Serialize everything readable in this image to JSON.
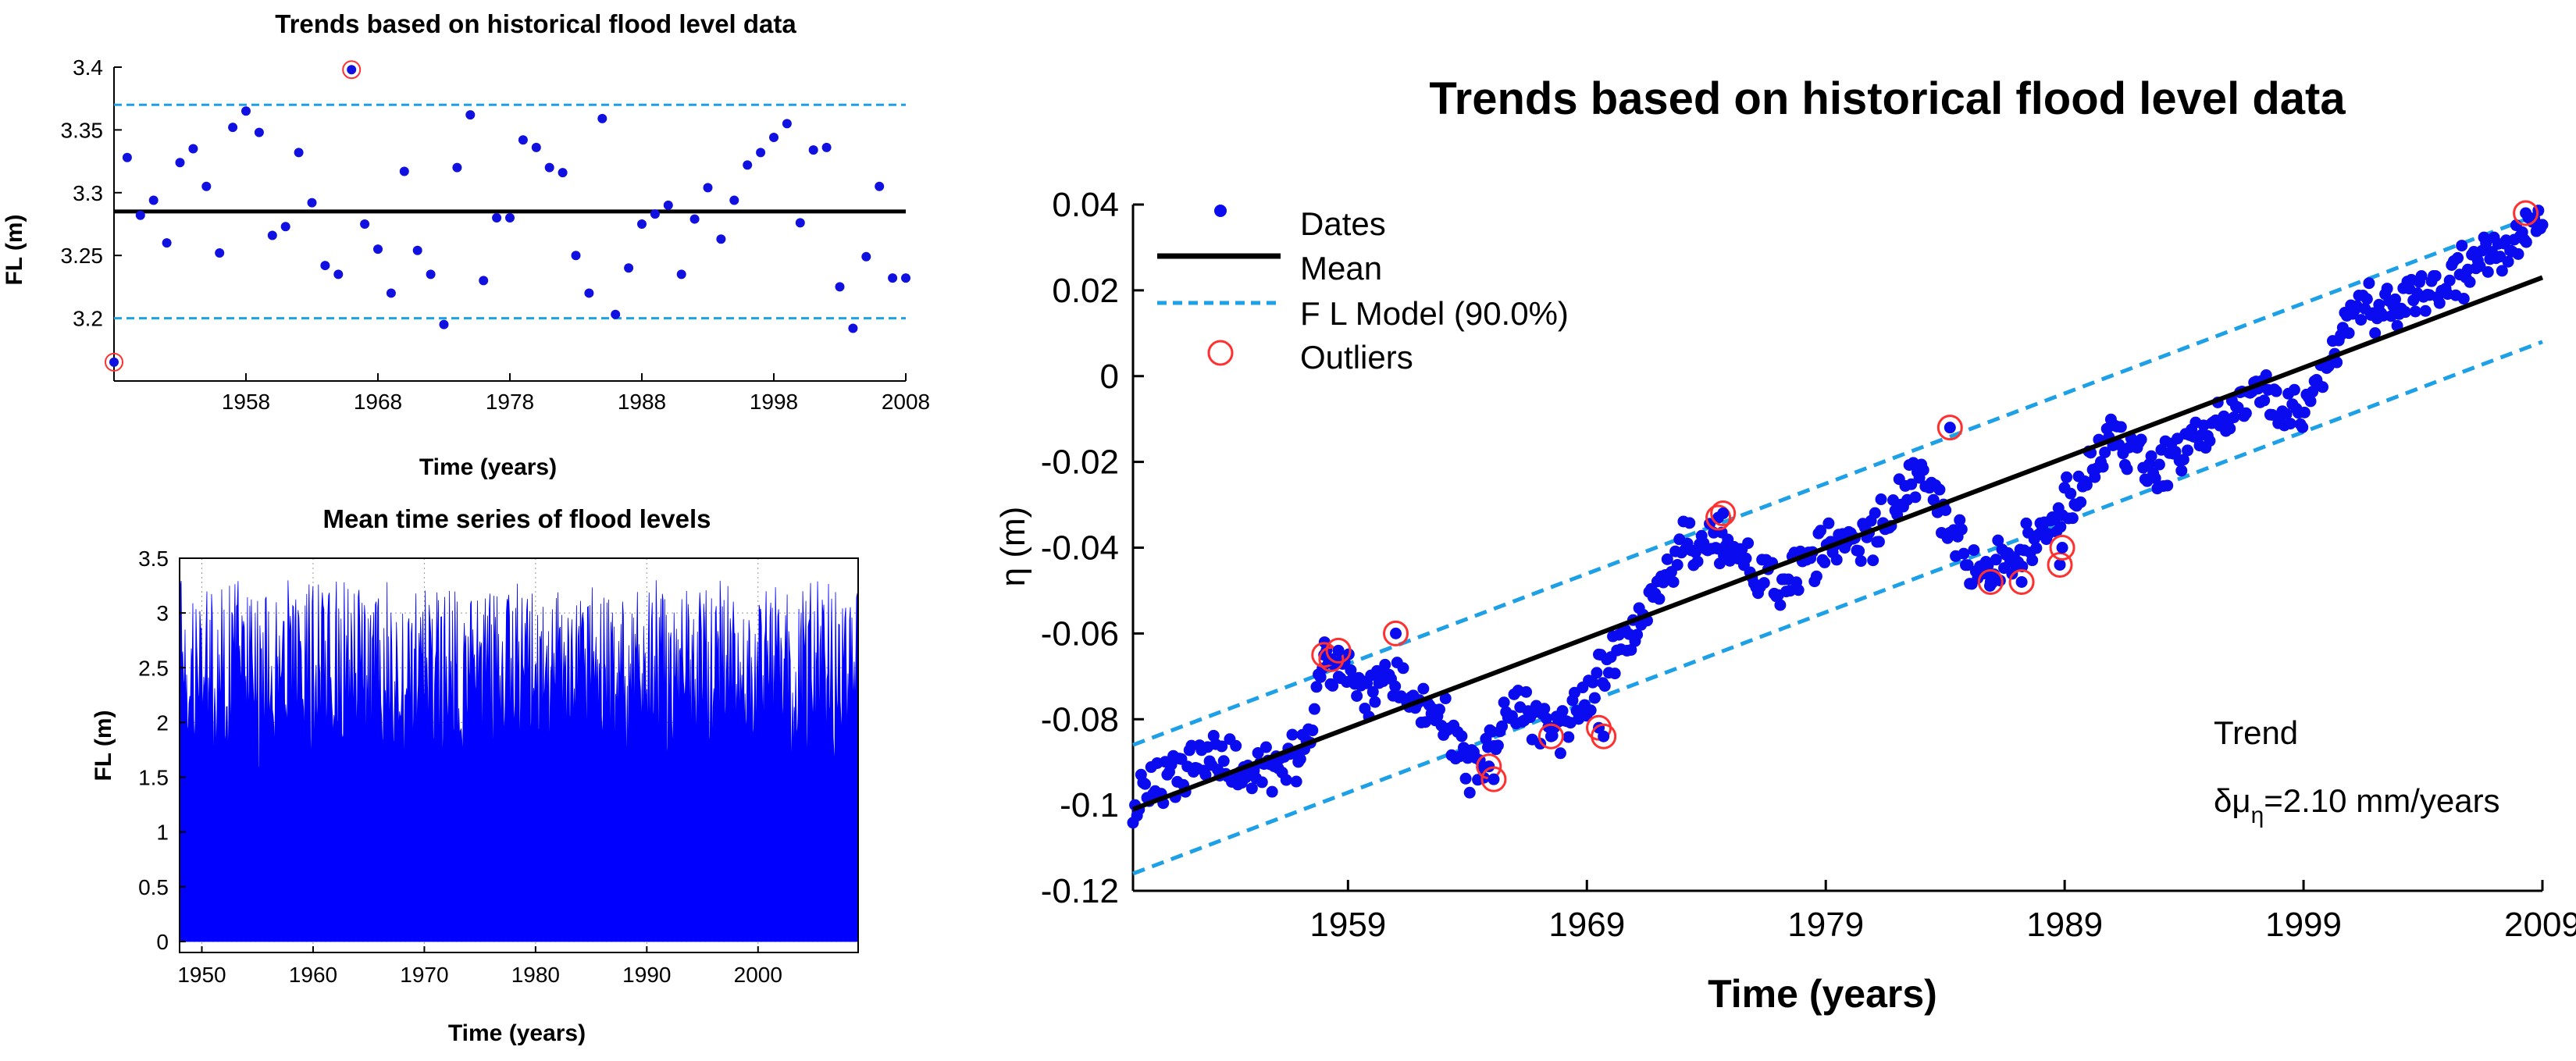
{
  "chart_data": [
    {
      "type": "scatter",
      "title": "Trends based on historical flood level data",
      "xlabel": "Time (years)",
      "ylabel": "FL (m)",
      "xlim": [
        1948,
        2008
      ],
      "ylim": [
        3.15,
        3.4
      ],
      "xticks": [
        "1958",
        "1968",
        "1978",
        "1988",
        "1998",
        "2008"
      ],
      "yticks": [
        "3.2",
        "3.25",
        "3.3",
        "3.35",
        "3.4"
      ],
      "mean": 3.285,
      "upper_bound": 3.37,
      "lower_bound": 3.2,
      "points": [
        {
          "x": 1948,
          "y": 3.165
        },
        {
          "x": 1949,
          "y": 3.328
        },
        {
          "x": 1950,
          "y": 3.282
        },
        {
          "x": 1951,
          "y": 3.294
        },
        {
          "x": 1952,
          "y": 3.26
        },
        {
          "x": 1953,
          "y": 3.324
        },
        {
          "x": 1954,
          "y": 3.335
        },
        {
          "x": 1955,
          "y": 3.305
        },
        {
          "x": 1956,
          "y": 3.252
        },
        {
          "x": 1957,
          "y": 3.352
        },
        {
          "x": 1958,
          "y": 3.365
        },
        {
          "x": 1959,
          "y": 3.348
        },
        {
          "x": 1960,
          "y": 3.266
        },
        {
          "x": 1961,
          "y": 3.273
        },
        {
          "x": 1962,
          "y": 3.332
        },
        {
          "x": 1963,
          "y": 3.292
        },
        {
          "x": 1964,
          "y": 3.242
        },
        {
          "x": 1965,
          "y": 3.235
        },
        {
          "x": 1966,
          "y": 3.398
        },
        {
          "x": 1967,
          "y": 3.275
        },
        {
          "x": 1968,
          "y": 3.255
        },
        {
          "x": 1969,
          "y": 3.22
        },
        {
          "x": 1970,
          "y": 3.317
        },
        {
          "x": 1971,
          "y": 3.254
        },
        {
          "x": 1972,
          "y": 3.235
        },
        {
          "x": 1973,
          "y": 3.195
        },
        {
          "x": 1974,
          "y": 3.32
        },
        {
          "x": 1975,
          "y": 3.362
        },
        {
          "x": 1976,
          "y": 3.23
        },
        {
          "x": 1977,
          "y": 3.28
        },
        {
          "x": 1978,
          "y": 3.28
        },
        {
          "x": 1979,
          "y": 3.342
        },
        {
          "x": 1980,
          "y": 3.336
        },
        {
          "x": 1981,
          "y": 3.32
        },
        {
          "x": 1982,
          "y": 3.316
        },
        {
          "x": 1983,
          "y": 3.25
        },
        {
          "x": 1984,
          "y": 3.22
        },
        {
          "x": 1985,
          "y": 3.359
        },
        {
          "x": 1986,
          "y": 3.203
        },
        {
          "x": 1987,
          "y": 3.24
        },
        {
          "x": 1988,
          "y": 3.275
        },
        {
          "x": 1989,
          "y": 3.283
        },
        {
          "x": 1990,
          "y": 3.29
        },
        {
          "x": 1991,
          "y": 3.235
        },
        {
          "x": 1992,
          "y": 3.279
        },
        {
          "x": 1993,
          "y": 3.304
        },
        {
          "x": 1994,
          "y": 3.263
        },
        {
          "x": 1995,
          "y": 3.294
        },
        {
          "x": 1996,
          "y": 3.322
        },
        {
          "x": 1997,
          "y": 3.332
        },
        {
          "x": 1998,
          "y": 3.344
        },
        {
          "x": 1999,
          "y": 3.355
        },
        {
          "x": 2000,
          "y": 3.276
        },
        {
          "x": 2001,
          "y": 3.334
        },
        {
          "x": 2002,
          "y": 3.336
        },
        {
          "x": 2003,
          "y": 3.225
        },
        {
          "x": 2004,
          "y": 3.192
        },
        {
          "x": 2005,
          "y": 3.249
        },
        {
          "x": 2006,
          "y": 3.305
        },
        {
          "x": 2007,
          "y": 3.232
        },
        {
          "x": 2008,
          "y": 3.232
        }
      ],
      "outliers": [
        {
          "x": 1948,
          "y": 3.165
        },
        {
          "x": 1966,
          "y": 3.398
        }
      ]
    },
    {
      "type": "bar",
      "title": "Mean time series of flood levels",
      "xlabel": "Time (years)",
      "ylabel": "FL (m)",
      "xlim": [
        1948,
        2009
      ],
      "ylim": [
        -0.1,
        3.5
      ],
      "xticks": [
        "1950",
        "1960",
        "1970",
        "1980",
        "1990",
        "2000"
      ],
      "yticks": [
        "0",
        "0.5",
        "1",
        "1.5",
        "2",
        "2.5",
        "3",
        "3.5"
      ],
      "series_description_range": [
        1.5,
        3.3
      ],
      "series_color": "#0000ff"
    },
    {
      "type": "scatter",
      "title": "Trends based on historical flood level data",
      "xlabel": "Time (years)",
      "ylabel": "η (m)",
      "xlim": [
        1950,
        2009
      ],
      "ylim": [
        -0.12,
        0.04
      ],
      "xticks": [
        "1959",
        "1969",
        "1979",
        "1989",
        "1999",
        "2009"
      ],
      "yticks": [
        "0.04",
        "0.02",
        "0",
        "-0.02",
        "-0.04",
        "-0.06",
        "-0.08",
        "-0.1",
        "-0.12"
      ],
      "legend": {
        "dates": "Dates",
        "mean": "Mean",
        "model": "F L Model (90.0%)",
        "outliers": "Outliers"
      },
      "trend_line": {
        "x": [
          1950,
          2009
        ],
        "y": [
          -0.101,
          0.023
        ]
      },
      "band_offset": 0.015,
      "trend_label": "Trend",
      "trend_value_prefix": "δμ",
      "trend_value_sub": "η",
      "trend_value": "=2.10 mm/years",
      "trend_anchors": [
        [
          1950,
          -0.1
        ],
        [
          1953,
          -0.088
        ],
        [
          1955,
          -0.093
        ],
        [
          1957,
          -0.09
        ],
        [
          1958,
          -0.066
        ],
        [
          1960,
          -0.075
        ],
        [
          1961,
          -0.07
        ],
        [
          1962,
          -0.078
        ],
        [
          1963,
          -0.08
        ],
        [
          1964,
          -0.092
        ],
        [
          1966,
          -0.078
        ],
        [
          1968,
          -0.082
        ],
        [
          1969,
          -0.074
        ],
        [
          1971,
          -0.06
        ],
        [
          1973,
          -0.04
        ],
        [
          1975,
          -0.04
        ],
        [
          1977,
          -0.05
        ],
        [
          1979,
          -0.04
        ],
        [
          1981,
          -0.038
        ],
        [
          1983,
          -0.02
        ],
        [
          1985,
          -0.045
        ],
        [
          1987,
          -0.043
        ],
        [
          1989,
          -0.03
        ],
        [
          1991,
          -0.015
        ],
        [
          1993,
          -0.022
        ],
        [
          1995,
          -0.012
        ],
        [
          1997,
          -0.005
        ],
        [
          1999,
          -0.008
        ],
        [
          2001,
          0.015
        ],
        [
          2004,
          0.018
        ],
        [
          2006,
          0.025
        ],
        [
          2008,
          0.032
        ],
        [
          2009,
          0.037
        ]
      ],
      "outliers": [
        [
          1958.0,
          -0.065
        ],
        [
          1958.3,
          -0.066
        ],
        [
          1958.6,
          -0.064
        ],
        [
          1961.0,
          -0.06
        ],
        [
          1964.9,
          -0.091
        ],
        [
          1965.1,
          -0.094
        ],
        [
          1967.5,
          -0.084
        ],
        [
          1969.5,
          -0.082
        ],
        [
          1969.7,
          -0.084
        ],
        [
          1974.5,
          -0.033
        ],
        [
          1974.7,
          -0.032
        ],
        [
          1984.2,
          -0.012
        ],
        [
          1985.9,
          -0.048
        ],
        [
          1987.2,
          -0.048
        ],
        [
          1988.8,
          -0.044
        ],
        [
          1988.9,
          -0.04
        ],
        [
          2008.3,
          0.038
        ]
      ]
    }
  ]
}
